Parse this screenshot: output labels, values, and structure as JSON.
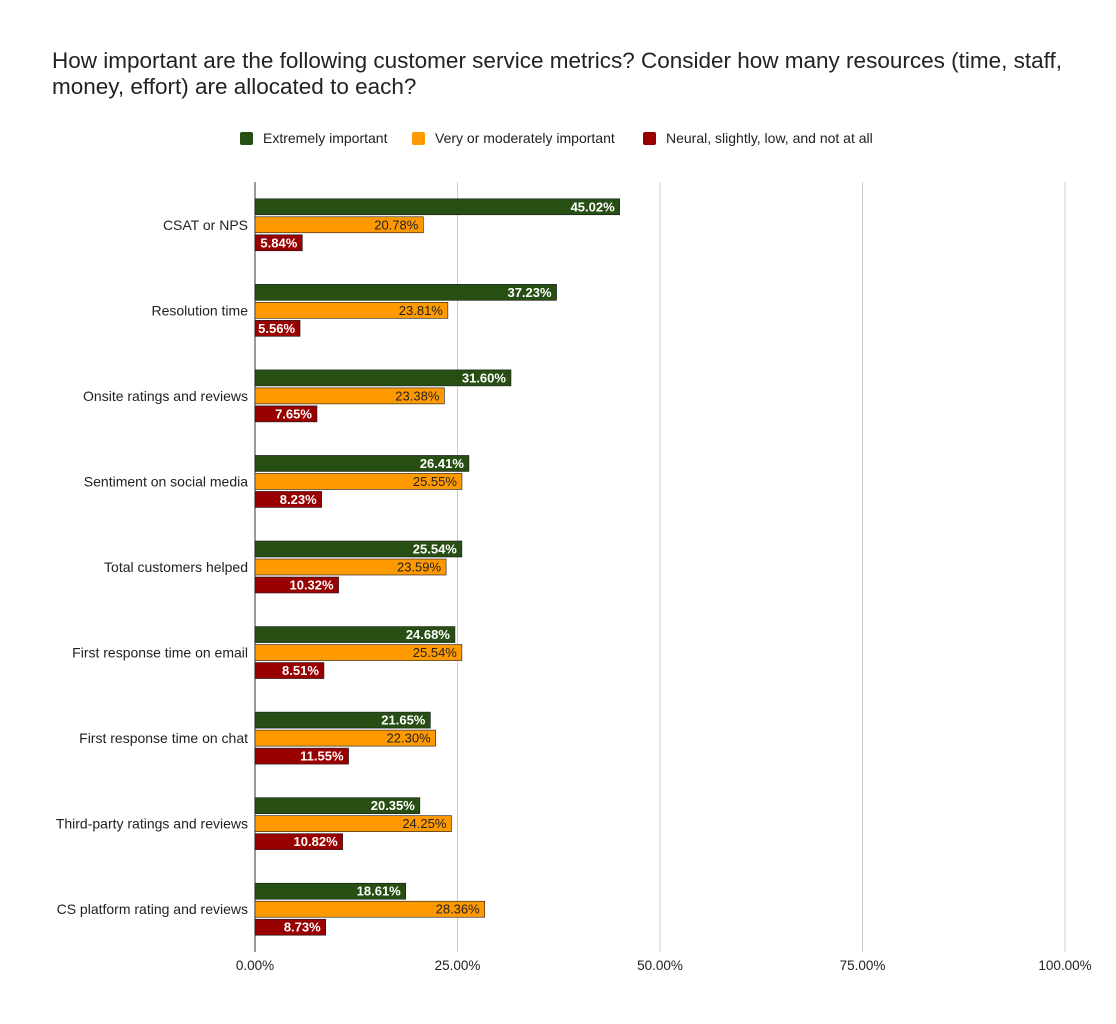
{
  "chart_data": {
    "type": "bar",
    "orientation": "horizontal",
    "title": "How important are the following customer service metrics? Consider how many resources (time, staff, money, effort) are allocated to each?",
    "categories": [
      "CSAT or NPS",
      "Resolution time",
      "Onsite ratings and reviews",
      "Sentiment on social media",
      "Total customers helped",
      "First response time on email",
      "First response time on chat",
      "Third-party ratings and reviews",
      "CS platform rating and reviews"
    ],
    "series": [
      {
        "name": "Extremely important",
        "color": "#274e13",
        "values": [
          45.02,
          37.23,
          31.6,
          26.41,
          25.54,
          24.68,
          21.65,
          20.35,
          18.61
        ]
      },
      {
        "name": "Very or moderately important",
        "color": "#ff9900",
        "values": [
          20.78,
          23.81,
          23.38,
          25.55,
          23.59,
          25.54,
          22.3,
          24.25,
          28.36
        ]
      },
      {
        "name": "Neural, slightly, low, and not at all",
        "color": "#990000",
        "values": [
          5.84,
          5.56,
          7.65,
          8.23,
          10.32,
          8.51,
          11.55,
          10.82,
          8.73
        ]
      }
    ],
    "xlim": [
      0,
      100
    ],
    "xticks": [
      0,
      25,
      50,
      75,
      100
    ],
    "xtick_labels": [
      "0.00%",
      "25.00%",
      "50.00%",
      "75.00%",
      "100.00%"
    ],
    "value_format": "%",
    "grid": true,
    "legend_position": "top"
  }
}
